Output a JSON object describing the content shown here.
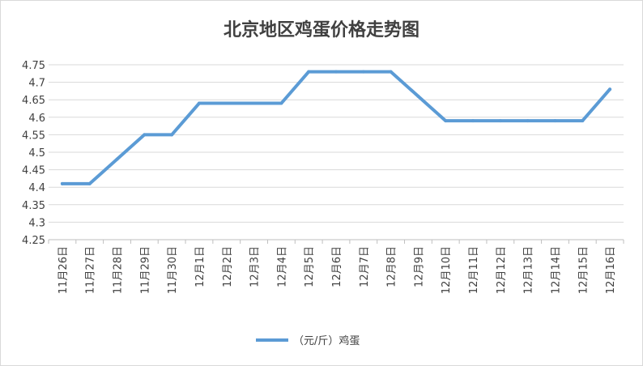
{
  "chart_data": {
    "type": "line",
    "title": "北京地区鸡蛋价格走势图",
    "categories": [
      "11月26日",
      "11月27日",
      "11月28日",
      "11月29日",
      "11月30日",
      "12月1日",
      "12月2日",
      "12月3日",
      "12月4日",
      "12月5日",
      "12月6日",
      "12月7日",
      "12月8日",
      "12月9日",
      "12月10日",
      "12月11日",
      "12月12日",
      "12月13日",
      "12月14日",
      "12月15日",
      "12月16日"
    ],
    "series": [
      {
        "name": "（元/斤）鸡蛋",
        "values": [
          4.41,
          4.41,
          4.48,
          4.55,
          4.55,
          4.64,
          4.64,
          4.64,
          4.64,
          4.73,
          4.73,
          4.73,
          4.73,
          4.66,
          4.59,
          4.59,
          4.59,
          4.59,
          4.59,
          4.59,
          4.68
        ],
        "color": "#5b9bd5"
      }
    ],
    "ylim": [
      4.25,
      4.75
    ],
    "yticks": [
      "4.25",
      "4.3",
      "4.35",
      "4.4",
      "4.45",
      "4.5",
      "4.55",
      "4.6",
      "4.65",
      "4.7",
      "4.75"
    ],
    "grid": true,
    "legend": "bottom-center"
  }
}
